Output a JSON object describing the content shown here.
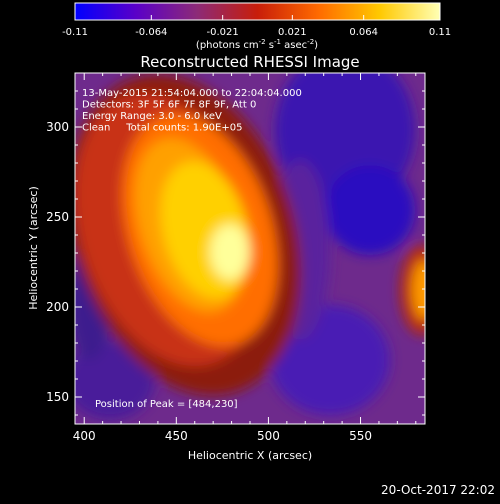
{
  "colorbar": {
    "ticks": [
      "-0.11",
      "-0.064",
      "-0.021",
      "0.021",
      "0.064",
      "0.11"
    ],
    "tick_values": [
      -0.11,
      -0.064,
      -0.021,
      0.021,
      0.064,
      0.11
    ],
    "units_prefix": "(photons cm",
    "units_exp1": "-2",
    "units_mid": " s",
    "units_exp2": "-1",
    "units_mid2": " asec",
    "units_exp3": "-2",
    "units_suffix": ")",
    "colors": [
      "#0000ff",
      "#5a00c8",
      "#8c2a78",
      "#c81e0a",
      "#ff6a00",
      "#ffc800",
      "#ffffb4"
    ]
  },
  "chart_data": {
    "type": "heatmap",
    "title": "Reconstructed RHESSI Image",
    "xlabel": "Heliocentric X (arcsec)",
    "ylabel": "Heliocentric Y (arcsec)",
    "xlim": [
      395,
      585
    ],
    "ylim": [
      135,
      330
    ],
    "x_ticks": [
      400,
      450,
      500,
      550
    ],
    "y_ticks": [
      150,
      200,
      250,
      300
    ],
    "grid": false,
    "colorscale_range": [
      -0.11,
      0.11
    ],
    "peak": {
      "x": 484,
      "y": 230
    },
    "annotations": [
      "13-May-2015 21:54:04.000 to 22:04:04.000",
      "Detectors: 3F 5F 6F 7F 8F 9F, Att 0",
      "Energy Range: 3.0 - 6.0 keV",
      "Clean     Total counts: 1.90E+05"
    ],
    "peak_label": "Position of Peak = [484,230]"
  },
  "footer": {
    "date": "20-Oct-2017 22:02"
  }
}
